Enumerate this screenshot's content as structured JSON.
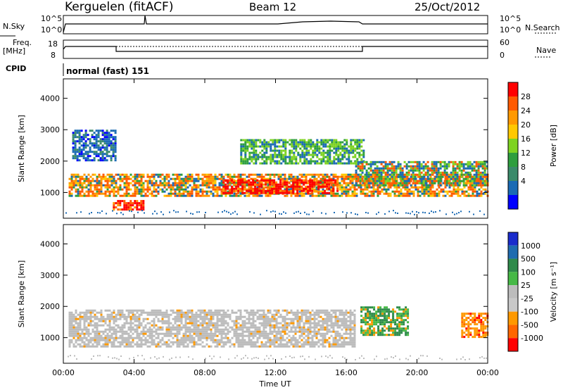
{
  "header": {
    "site": "Kerguelen (fitACF)",
    "beam": "Beam 12",
    "date": "25/Oct/2012"
  },
  "top_panels": {
    "nsky_label": "N.Sky",
    "nsky_ticks": [
      "10^5",
      "10^0"
    ],
    "nsearch_label": "N.Search",
    "nsearch_ticks": [
      "10^5",
      "10^0"
    ],
    "freq_label": "Freq.",
    "freq_unit": "[MHz]",
    "freq_ticks": [
      "18",
      "8"
    ],
    "nave_label": "Nave",
    "nave_ticks": [
      "60",
      "0"
    ],
    "cpid_label": "CPID",
    "cpid_value": "normal (fast) 151"
  },
  "chart_data": [
    {
      "type": "heatmap",
      "name": "power",
      "ylabel": "Slant Range [km]",
      "yticks": [
        "4000",
        "3000",
        "2000",
        "1000"
      ],
      "ylim": [
        180,
        4620
      ],
      "xlim": [
        0,
        24
      ],
      "colorbar": {
        "label": "Power [dB]",
        "ticks": [
          "28",
          "24",
          "20",
          "16",
          "12",
          "8",
          "4"
        ],
        "colors": [
          "#ff0000",
          "#ff5a00",
          "#ff9900",
          "#ffc800",
          "#7ed321",
          "#2e9e3e",
          "#3a8a6a",
          "#1a6ab4",
          "#0000ff"
        ]
      },
      "bands": [
        {
          "x": [
            0.3,
            24
          ],
          "y": [
            920,
            1600
          ],
          "v": "high"
        },
        {
          "x": [
            2.8,
            4.5
          ],
          "y": [
            430,
            760
          ],
          "v": "peak"
        },
        {
          "x": [
            9,
            15.5
          ],
          "y": [
            1000,
            1420
          ],
          "v": "peak"
        },
        {
          "x": [
            0.5,
            3
          ],
          "y": [
            2000,
            3000
          ],
          "v": "low"
        },
        {
          "x": [
            10,
            17
          ],
          "y": [
            1900,
            2700
          ],
          "v": "mid"
        },
        {
          "x": [
            16.5,
            24
          ],
          "y": [
            1200,
            2000
          ],
          "v": "mixed"
        }
      ]
    },
    {
      "type": "heatmap",
      "name": "velocity",
      "ylabel": "Slant Range [km]",
      "yticks": [
        "4000",
        "3000",
        "2000",
        "1000"
      ],
      "ylim": [
        180,
        4620
      ],
      "xlim": [
        0,
        24
      ],
      "colorbar": {
        "label": "Velocity [m s⁻¹]",
        "ticks": [
          "1000",
          "500",
          "100",
          "25",
          "-25",
          "-100",
          "-500",
          "-1000"
        ],
        "colors": [
          "#1a2ccc",
          "#1f6cb0",
          "#2e8a4a",
          "#46b946",
          "#bcbcbc",
          "#c8c8c8",
          "#ff9900",
          "#ff6600",
          "#ff0000"
        ]
      },
      "bands": [
        {
          "x": [
            0.3,
            16.5
          ],
          "y": [
            700,
            1900
          ],
          "v": "grey"
        },
        {
          "x": [
            16.8,
            19.5
          ],
          "y": [
            1100,
            2000
          ],
          "v": "green"
        },
        {
          "x": [
            22.5,
            24
          ],
          "y": [
            1000,
            1800
          ],
          "v": "orange"
        }
      ]
    }
  ],
  "xaxis": {
    "label": "Time UT",
    "ticks": [
      "00:00",
      "04:00",
      "08:00",
      "12:00",
      "16:00",
      "20:00",
      "00:00"
    ]
  }
}
